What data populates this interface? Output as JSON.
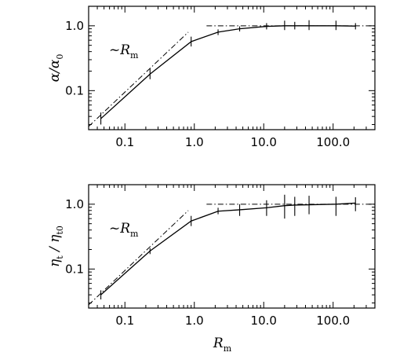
{
  "chart_data": [
    {
      "type": "line",
      "xscale": "log",
      "yscale": "log",
      "xlim": [
        0.03,
        400
      ],
      "ylim": [
        0.025,
        2.0
      ],
      "xticks": [
        "0.1",
        "1.0",
        "10.0",
        "100.0"
      ],
      "yticks": [
        "0.1",
        "1.0"
      ],
      "xlabel": "",
      "ylabel": {
        "base": "α/α",
        "sub": "0"
      },
      "annotation": {
        "prefix": "~",
        "base": "R",
        "sub": "m"
      },
      "series": [
        {
          "x": [
            0.045,
            0.23,
            0.9,
            2.2,
            4.5,
            11,
            20,
            28,
            45,
            110,
            210
          ],
          "y": [
            0.037,
            0.18,
            0.57,
            0.8,
            0.9,
            0.98,
            1.0,
            1.0,
            1.0,
            1.0,
            0.99
          ],
          "err_low": [
            0.03,
            0.15,
            0.48,
            0.72,
            0.82,
            0.88,
            0.86,
            0.88,
            0.86,
            0.86,
            0.88
          ],
          "err_high": [
            0.046,
            0.22,
            0.68,
            0.88,
            0.98,
            1.1,
            1.2,
            1.15,
            1.22,
            1.2,
            1.1
          ]
        }
      ],
      "reference_lines": [
        {
          "label": "~Rm",
          "x": [
            0.03,
            0.82
          ],
          "y": [
            0.028,
            0.8
          ]
        },
        {
          "label": "",
          "x": [
            1.5,
            400
          ],
          "y": [
            1.0,
            1.0
          ]
        }
      ]
    },
    {
      "type": "line",
      "xscale": "log",
      "yscale": "log",
      "xlim": [
        0.03,
        400
      ],
      "ylim": [
        0.025,
        2.0
      ],
      "xticks": [
        "0.1",
        "1.0",
        "10.0",
        "100.0"
      ],
      "yticks": [
        "0.1",
        "1.0"
      ],
      "xlabel": {
        "base": "R",
        "sub": "m"
      },
      "ylabel": {
        "base": "η",
        "sub1": "t",
        "mid": " / η",
        "sub2": "t0"
      },
      "annotation": {
        "prefix": "~",
        "base": "R",
        "sub": "m"
      },
      "series": [
        {
          "x": [
            0.045,
            0.23,
            0.9,
            2.2,
            4.5,
            11,
            20,
            28,
            45,
            110,
            210
          ],
          "y": [
            0.04,
            0.19,
            0.55,
            0.78,
            0.82,
            0.88,
            0.95,
            0.97,
            0.98,
            1.0,
            1.04
          ],
          "err_low": [
            0.034,
            0.17,
            0.46,
            0.7,
            0.66,
            0.66,
            0.6,
            0.66,
            0.7,
            0.66,
            0.78
          ],
          "err_high": [
            0.047,
            0.21,
            0.66,
            0.88,
            1.0,
            1.15,
            1.4,
            1.3,
            1.35,
            1.3,
            1.28
          ]
        }
      ],
      "reference_lines": [
        {
          "label": "~Rm",
          "x": [
            0.03,
            0.82
          ],
          "y": [
            0.028,
            0.8
          ]
        },
        {
          "label": "",
          "x": [
            1.5,
            400
          ],
          "y": [
            1.0,
            1.0
          ]
        }
      ]
    }
  ]
}
